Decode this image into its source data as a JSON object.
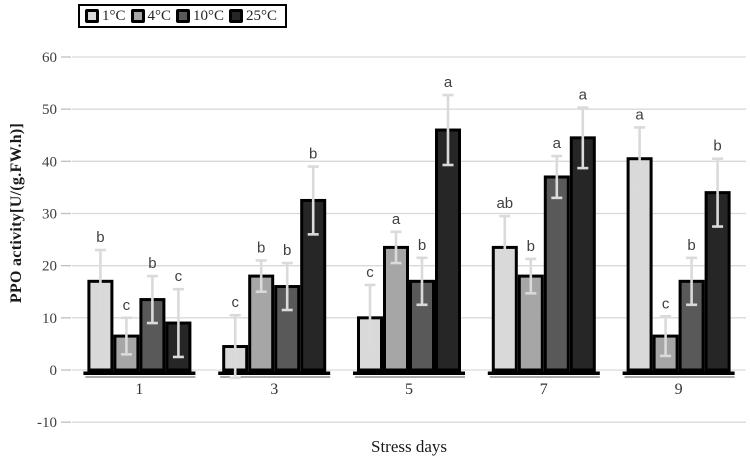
{
  "figure": {
    "background": "#ffffff",
    "gridline_color": "#d9d9d9",
    "tick_color": "#bfbfbf",
    "axis_text_color": "#404040",
    "bar_border_color": "#000000",
    "error_bar_color": "#dadada",
    "letter_color": "#3f3f3f",
    "baseline_color": "#000000"
  },
  "legend": {
    "items": [
      {
        "label": "1°C",
        "color": "#d9d9d9"
      },
      {
        "label": "4°C",
        "color": "#a6a6a6"
      },
      {
        "label": "10°C",
        "color": "#595959"
      },
      {
        "label": "25°C",
        "color": "#262626"
      }
    ]
  },
  "chart_data": {
    "type": "bar",
    "title": "",
    "xlabel": "Stress days",
    "ylabel": "PPO activity[U/(g.FW.h)]",
    "ylim": [
      -10,
      60
    ],
    "ytick_step": 10,
    "grid": true,
    "legend_position": "top-left",
    "categories": [
      "1",
      "3",
      "5",
      "7",
      "9"
    ],
    "series": [
      {
        "name": "1°C",
        "color": "#d9d9d9",
        "values": [
          17,
          4.5,
          10,
          23.5,
          40.5
        ],
        "errors": [
          6,
          6,
          6.3,
          6,
          6
        ],
        "letters": [
          "b",
          "c",
          "c",
          "ab",
          "a"
        ]
      },
      {
        "name": "4°C",
        "color": "#a6a6a6",
        "values": [
          6.5,
          18,
          23.5,
          18,
          6.5
        ],
        "errors": [
          3.5,
          3,
          3,
          3.3,
          3.8
        ],
        "letters": [
          "c",
          "b",
          "a",
          "b",
          "c"
        ]
      },
      {
        "name": "10°C",
        "color": "#595959",
        "values": [
          13.5,
          16,
          17,
          37,
          17
        ],
        "errors": [
          4.5,
          4.5,
          4.5,
          4,
          4.5
        ],
        "letters": [
          "b",
          "b",
          "b",
          "a",
          "b"
        ]
      },
      {
        "name": "25°C",
        "color": "#262626",
        "values": [
          9,
          32.5,
          46,
          44.5,
          34
        ],
        "errors": [
          6.5,
          6.5,
          6.7,
          5.8,
          6.5
        ],
        "letters": [
          "c",
          "b",
          "a",
          "a",
          "b"
        ]
      }
    ]
  }
}
